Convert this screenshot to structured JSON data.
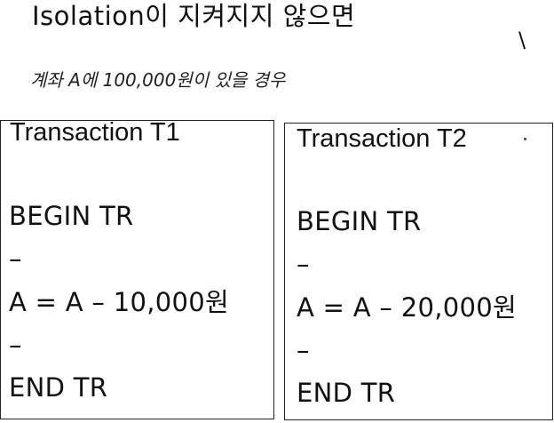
{
  "heading": {
    "title": "Isolation이 지켜지지 않으면",
    "mark": "\\",
    "subtitle": "계좌 A에 100,000원이 있을 경우"
  },
  "transactions": [
    {
      "title": "Transaction T1",
      "lines": [
        "BEGIN TR",
        "–",
        "A = A – 10,000원",
        "–",
        "END TR"
      ]
    },
    {
      "title": "Transaction T2",
      "lines": [
        "BEGIN TR",
        "–",
        "A = A – 20,000원",
        "–",
        "END TR"
      ]
    }
  ]
}
